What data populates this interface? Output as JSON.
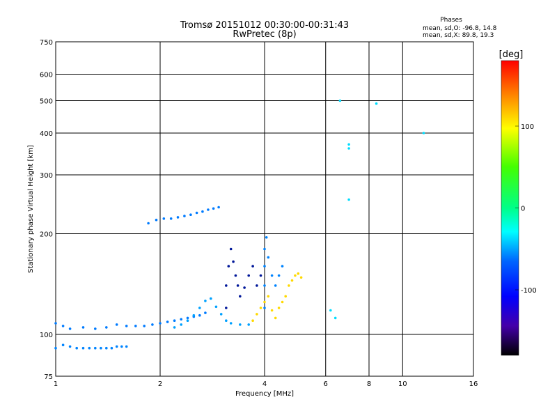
{
  "chart_data": {
    "type": "scatter",
    "title": "Tromsø 20151012 00:30:00-00:31:43",
    "subtitle": "RwPretec (8p)",
    "stats": {
      "heading": "Phases",
      "line_o": "mean, sd,O: -96.8, 14.8",
      "line_x": "mean, sd,X:  89.8, 19.3"
    },
    "xlabel": "Frequency [MHz]",
    "ylabel": "Stationary phase Virtual Height [km]",
    "xscale": "log",
    "yscale": "log",
    "xlim": [
      1,
      16
    ],
    "ylim": [
      75,
      750
    ],
    "xticks": [
      1,
      2,
      4,
      6,
      8,
      10,
      16
    ],
    "yticks": [
      75,
      100,
      200,
      300,
      400,
      500,
      600,
      750
    ],
    "grid": true,
    "colorbar": {
      "label": "[deg]",
      "range": [
        -180,
        180
      ],
      "ticks": [
        100,
        0,
        -100
      ]
    },
    "series": [
      {
        "points": [
          [
            1.0,
            91
          ],
          [
            1.05,
            93
          ],
          [
            1.1,
            92
          ],
          [
            1.15,
            91
          ],
          [
            1.2,
            91
          ],
          [
            1.25,
            91
          ],
          [
            1.3,
            91
          ],
          [
            1.35,
            91
          ],
          [
            1.4,
            91
          ],
          [
            1.45,
            91
          ],
          [
            1.5,
            92
          ],
          [
            1.55,
            92
          ],
          [
            1.6,
            92
          ]
        ],
        "phase": -110
      },
      {
        "points": [
          [
            1.0,
            108
          ],
          [
            1.05,
            106
          ],
          [
            1.1,
            104
          ],
          [
            1.2,
            105
          ],
          [
            1.3,
            104
          ],
          [
            1.4,
            105
          ],
          [
            1.5,
            107
          ],
          [
            1.6,
            106
          ],
          [
            1.7,
            106
          ],
          [
            1.8,
            106
          ],
          [
            1.9,
            107
          ],
          [
            2.0,
            108
          ],
          [
            2.1,
            109
          ],
          [
            2.2,
            110
          ],
          [
            2.3,
            111
          ],
          [
            2.4,
            112
          ],
          [
            2.5,
            113
          ],
          [
            2.6,
            114
          ],
          [
            2.7,
            116
          ]
        ],
        "phase": -112
      },
      {
        "points": [
          [
            1.85,
            215
          ],
          [
            1.95,
            220
          ],
          [
            2.05,
            222
          ],
          [
            2.15,
            222
          ],
          [
            2.25,
            224
          ],
          [
            2.35,
            226
          ],
          [
            2.45,
            228
          ],
          [
            2.55,
            231
          ],
          [
            2.65,
            233
          ],
          [
            2.75,
            236
          ],
          [
            2.85,
            238
          ],
          [
            2.95,
            240
          ]
        ],
        "phase": -112
      },
      {
        "points": [
          [
            2.2,
            105
          ],
          [
            2.3,
            107
          ],
          [
            2.4,
            110
          ],
          [
            2.5,
            114
          ],
          [
            2.6,
            120
          ],
          [
            2.7,
            126
          ],
          [
            2.8,
            128
          ],
          [
            2.9,
            121
          ],
          [
            3.0,
            115
          ],
          [
            3.1,
            110
          ],
          [
            3.2,
            108
          ],
          [
            3.4,
            107
          ],
          [
            3.6,
            107
          ]
        ],
        "phase": -100
      },
      {
        "points": [
          [
            3.1,
            120
          ],
          [
            3.1,
            140
          ],
          [
            3.15,
            160
          ],
          [
            3.2,
            180
          ],
          [
            3.25,
            165
          ],
          [
            3.3,
            150
          ],
          [
            3.35,
            140
          ],
          [
            3.4,
            130
          ],
          [
            3.5,
            138
          ],
          [
            3.6,
            150
          ],
          [
            3.7,
            160
          ],
          [
            3.8,
            140
          ],
          [
            3.9,
            150
          ]
        ],
        "phase": -140
      },
      {
        "points": [
          [
            4.0,
            120
          ],
          [
            4.0,
            140
          ],
          [
            4.0,
            160
          ],
          [
            4.0,
            180
          ],
          [
            4.05,
            195
          ],
          [
            4.1,
            170
          ],
          [
            4.2,
            150
          ],
          [
            4.3,
            140
          ],
          [
            4.4,
            150
          ],
          [
            4.5,
            160
          ]
        ],
        "phase": -110
      },
      {
        "points": [
          [
            3.7,
            110
          ],
          [
            3.8,
            115
          ],
          [
            3.9,
            120
          ],
          [
            4.0,
            125
          ],
          [
            4.1,
            130
          ],
          [
            4.2,
            118
          ],
          [
            4.3,
            112
          ],
          [
            4.4,
            120
          ],
          [
            4.5,
            125
          ],
          [
            4.6,
            130
          ],
          [
            4.7,
            140
          ],
          [
            4.8,
            145
          ],
          [
            4.9,
            150
          ],
          [
            5.0,
            152
          ],
          [
            5.1,
            148
          ]
        ],
        "phase": 110
      },
      {
        "points": [
          [
            6.2,
            118
          ],
          [
            6.4,
            112
          ],
          [
            7.0,
            360
          ],
          [
            7.0,
            370
          ],
          [
            7.0,
            253
          ],
          [
            8.4,
            490
          ],
          [
            11.5,
            400
          ],
          [
            6.6,
            500
          ]
        ],
        "phase": -80
      }
    ]
  }
}
